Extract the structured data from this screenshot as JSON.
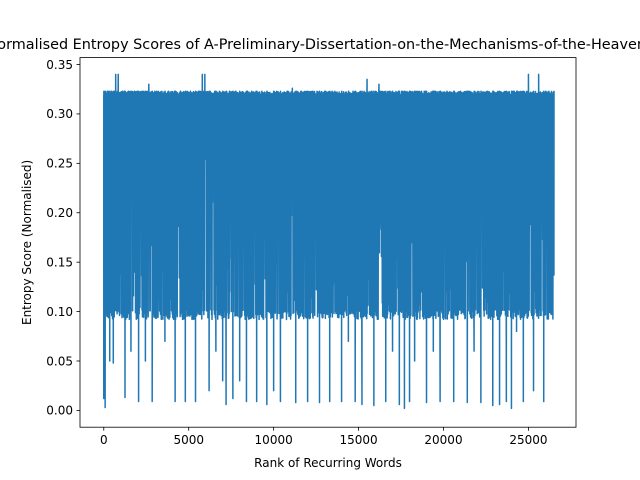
{
  "chart_data": {
    "type": "line",
    "title": "Normalised Entropy Scores of A-Preliminary-Dissertation-on-the-Mechanisms-of-the-Heavens",
    "xlabel": "Rank of Recurring Words",
    "ylabel": "Entropy Score (Normalised)",
    "xlim": [
      -1400,
      27800
    ],
    "ylim": [
      -0.017,
      0.357
    ],
    "xticks": [
      0,
      5000,
      10000,
      15000,
      20000,
      25000
    ],
    "yticks": [
      0.0,
      0.05,
      0.1,
      0.15,
      0.2,
      0.25,
      0.3,
      0.35
    ],
    "xtick_labels": [
      "0",
      "5000",
      "10000",
      "15000",
      "20000",
      "25000"
    ],
    "ytick_labels": [
      "0.00",
      "0.05",
      "0.10",
      "0.15",
      "0.20",
      "0.25",
      "0.30",
      "0.35"
    ],
    "grid": false,
    "legend": "none",
    "series": [
      {
        "color": "#1f77b4",
        "x_range": [
          0,
          26500
        ],
        "band_top": 0.323,
        "band_floor": 0.092,
        "deep_dips": [
          [
            0,
            0.012
          ],
          [
            80,
            0.003
          ],
          [
            200,
            0.135
          ],
          [
            350,
            0.05
          ],
          [
            450,
            0.127
          ],
          [
            560,
            0.048
          ],
          [
            700,
            0.34
          ],
          [
            850,
            0.34
          ],
          [
            1100,
            0.14
          ],
          [
            1250,
            0.013
          ],
          [
            1450,
            0.17
          ],
          [
            1600,
            0.06
          ],
          [
            1800,
            0.14
          ],
          [
            2050,
            0.009
          ],
          [
            2250,
            0.12
          ],
          [
            2450,
            0.05
          ],
          [
            2650,
            0.33
          ],
          [
            2850,
            0.009
          ],
          [
            3000,
            0.18
          ],
          [
            3200,
            0.12
          ],
          [
            3600,
            0.07
          ],
          [
            3800,
            0.15
          ],
          [
            4200,
            0.009
          ],
          [
            4500,
            0.12
          ],
          [
            4800,
            0.009
          ],
          [
            5100,
            0.14
          ],
          [
            5400,
            0.009
          ],
          [
            5600,
            0.1
          ],
          [
            5800,
            0.34
          ],
          [
            5950,
            0.34
          ],
          [
            6200,
            0.02
          ],
          [
            6600,
            0.06
          ],
          [
            6800,
            0.17
          ],
          [
            7000,
            0.03
          ],
          [
            7200,
            0.006
          ],
          [
            7400,
            0.12
          ],
          [
            7600,
            0.012
          ],
          [
            8000,
            0.03
          ],
          [
            8400,
            0.009
          ],
          [
            8700,
            0.12
          ],
          [
            9000,
            0.009
          ],
          [
            9300,
            0.15
          ],
          [
            9600,
            0.006
          ],
          [
            10000,
            0.02
          ],
          [
            10400,
            0.009
          ],
          [
            10800,
            0.12
          ],
          [
            11100,
            0.326
          ],
          [
            11300,
            0.008
          ],
          [
            11600,
            0.12
          ],
          [
            12000,
            0.009
          ],
          [
            12300,
            0.16
          ],
          [
            12700,
            0.008
          ],
          [
            13000,
            0.12
          ],
          [
            13300,
            0.009
          ],
          [
            13600,
            0.13
          ],
          [
            14000,
            0.009
          ],
          [
            14400,
            0.07
          ],
          [
            14800,
            0.009
          ],
          [
            15200,
            0.006
          ],
          [
            15500,
            0.335
          ],
          [
            15900,
            0.005
          ],
          [
            16200,
            0.33
          ],
          [
            16600,
            0.009
          ],
          [
            17000,
            0.06
          ],
          [
            17400,
            0.006
          ],
          [
            17700,
            0.002
          ],
          [
            18000,
            0.009
          ],
          [
            18300,
            0.05
          ],
          [
            18700,
            0.12
          ],
          [
            19000,
            0.008
          ],
          [
            19400,
            0.06
          ],
          [
            19800,
            0.009
          ],
          [
            20200,
            0.12
          ],
          [
            20600,
            0.009
          ],
          [
            21000,
            0.14
          ],
          [
            21400,
            0.008
          ],
          [
            21800,
            0.06
          ],
          [
            22200,
            0.008
          ],
          [
            22600,
            0.12
          ],
          [
            22900,
            0.005
          ],
          [
            23300,
            0.006
          ],
          [
            23700,
            0.009
          ],
          [
            24000,
            0.002
          ],
          [
            24300,
            0.08
          ],
          [
            24700,
            0.009
          ],
          [
            25000,
            0.34
          ],
          [
            25300,
            0.02
          ],
          [
            25600,
            0.34
          ],
          [
            25900,
            0.009
          ],
          [
            26200,
            0.16
          ],
          [
            26500,
            0.137
          ]
        ]
      }
    ]
  }
}
